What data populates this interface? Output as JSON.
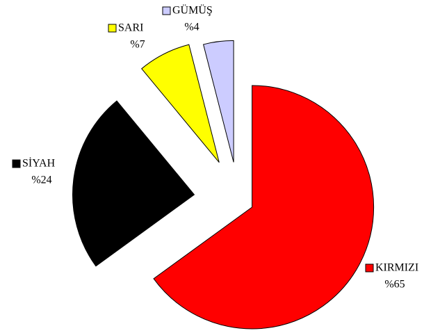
{
  "chart_data": {
    "type": "pie",
    "categories": [
      "KIRMIZI",
      "SİYAH",
      "SARI",
      "GÜMÜŞ"
    ],
    "values": [
      65,
      24,
      7,
      4
    ],
    "value_labels": [
      "%65",
      "%24",
      "%7",
      "%4"
    ],
    "colors": [
      "#ff0000",
      "#000000",
      "#ffff00",
      "#ccccff"
    ]
  }
}
